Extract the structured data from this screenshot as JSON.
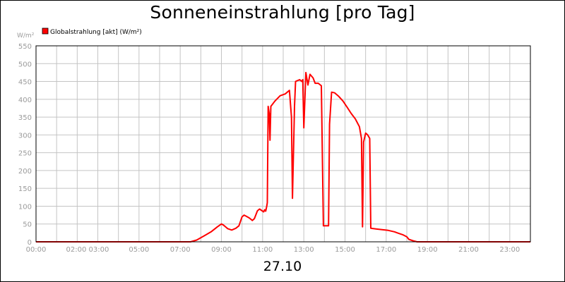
{
  "chart_data": {
    "type": "line",
    "title": "Sonneneinstrahlung [pro Tag]",
    "date_label": "27.10",
    "y_unit": "W/m²",
    "ylim": [
      0,
      550
    ],
    "y_ticks": [
      0,
      50,
      100,
      150,
      200,
      250,
      300,
      350,
      400,
      450,
      500,
      550
    ],
    "xlim": [
      0,
      24
    ],
    "x_ticks": [
      {
        "label": "00:00",
        "hour": 0
      },
      {
        "label": "02:00 03:00",
        "hour": 2.5
      },
      {
        "label": "05:00",
        "hour": 5
      },
      {
        "label": "07:00",
        "hour": 7
      },
      {
        "label": "09:00",
        "hour": 9
      },
      {
        "label": "11:00",
        "hour": 11
      },
      {
        "label": "13:00",
        "hour": 13
      },
      {
        "label": "15:00",
        "hour": 15
      },
      {
        "label": "17:00",
        "hour": 17
      },
      {
        "label": "19:00",
        "hour": 19
      },
      {
        "label": "21:00",
        "hour": 21
      },
      {
        "label": "23:00",
        "hour": 23
      }
    ],
    "grid": true,
    "legend_position": "top-left",
    "series": [
      {
        "name": "Globalstrahlung [akt] (W/m²)",
        "color": "#ff0000",
        "points": [
          [
            0,
            0
          ],
          [
            7.5,
            0
          ],
          [
            7.8,
            5
          ],
          [
            8.2,
            18
          ],
          [
            8.5,
            28
          ],
          [
            8.8,
            42
          ],
          [
            9.0,
            50
          ],
          [
            9.1,
            47
          ],
          [
            9.3,
            37
          ],
          [
            9.5,
            33
          ],
          [
            9.7,
            38
          ],
          [
            9.85,
            45
          ],
          [
            10.0,
            70
          ],
          [
            10.1,
            75
          ],
          [
            10.2,
            72
          ],
          [
            10.35,
            67
          ],
          [
            10.5,
            60
          ],
          [
            10.6,
            65
          ],
          [
            10.75,
            87
          ],
          [
            10.85,
            92
          ],
          [
            10.95,
            88
          ],
          [
            11.05,
            84
          ],
          [
            11.1,
            90
          ],
          [
            11.15,
            86
          ],
          [
            11.2,
            100
          ],
          [
            11.23,
            110
          ],
          [
            11.27,
            380
          ],
          [
            11.32,
            360
          ],
          [
            11.36,
            285
          ],
          [
            11.4,
            380
          ],
          [
            11.6,
            395
          ],
          [
            11.85,
            410
          ],
          [
            12.1,
            415
          ],
          [
            12.3,
            425
          ],
          [
            12.4,
            350
          ],
          [
            12.45,
            122
          ],
          [
            12.55,
            380
          ],
          [
            12.6,
            450
          ],
          [
            12.8,
            455
          ],
          [
            12.9,
            450
          ],
          [
            12.95,
            455
          ],
          [
            13.0,
            320
          ],
          [
            13.1,
            475
          ],
          [
            13.2,
            440
          ],
          [
            13.3,
            470
          ],
          [
            13.45,
            460
          ],
          [
            13.55,
            445
          ],
          [
            13.7,
            445
          ],
          [
            13.85,
            438
          ],
          [
            13.95,
            45
          ],
          [
            14.15,
            45
          ],
          [
            14.2,
            45
          ],
          [
            14.25,
            330
          ],
          [
            14.35,
            420
          ],
          [
            14.5,
            418
          ],
          [
            14.7,
            408
          ],
          [
            14.9,
            395
          ],
          [
            15.1,
            378
          ],
          [
            15.3,
            360
          ],
          [
            15.5,
            345
          ],
          [
            15.7,
            323
          ],
          [
            15.8,
            290
          ],
          [
            15.85,
            42
          ],
          [
            15.9,
            280
          ],
          [
            16.0,
            305
          ],
          [
            16.1,
            300
          ],
          [
            16.2,
            290
          ],
          [
            16.25,
            38
          ],
          [
            16.5,
            36
          ],
          [
            16.8,
            34
          ],
          [
            17.1,
            32
          ],
          [
            17.4,
            28
          ],
          [
            17.6,
            24
          ],
          [
            17.8,
            20
          ],
          [
            18.0,
            14
          ],
          [
            18.1,
            7
          ],
          [
            18.3,
            3
          ],
          [
            18.5,
            0
          ],
          [
            24,
            0
          ]
        ]
      }
    ]
  }
}
